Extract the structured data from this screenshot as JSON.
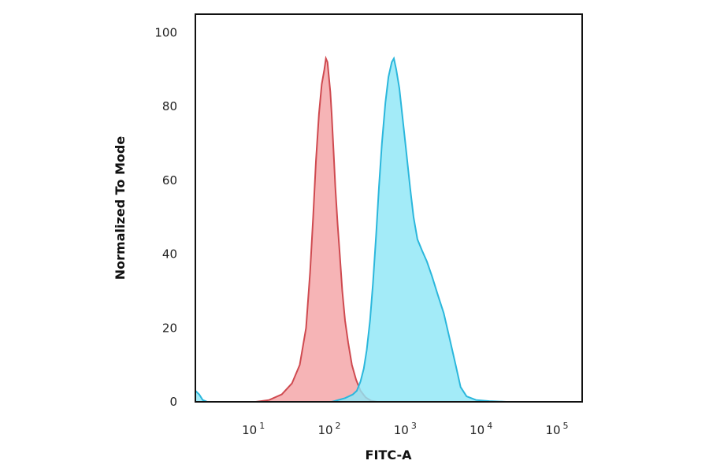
{
  "chart_data": {
    "type": "area",
    "title": "",
    "xlabel": "FITC-A",
    "ylabel": "Normalized To Mode",
    "x_scale": "log",
    "xlim": [
      1.6,
      200000
    ],
    "ylim": [
      0,
      105
    ],
    "x_ticks": [
      {
        "value": 10,
        "base": "10",
        "exp": "1"
      },
      {
        "value": 100,
        "base": "10",
        "exp": "2"
      },
      {
        "value": 1000,
        "base": "10",
        "exp": "3"
      },
      {
        "value": 10000,
        "base": "10",
        "exp": "4"
      },
      {
        "value": 100000,
        "base": "10",
        "exp": "5"
      }
    ],
    "y_ticks": [
      0,
      20,
      40,
      60,
      80,
      100
    ],
    "grid": false,
    "series": [
      {
        "color": "#f4a3a6",
        "stroke": "#cf4a50",
        "points": [
          [
            10,
            0
          ],
          [
            15,
            0.5
          ],
          [
            22,
            2
          ],
          [
            30,
            5
          ],
          [
            38,
            10
          ],
          [
            46,
            20
          ],
          [
            52,
            35
          ],
          [
            57,
            50
          ],
          [
            62,
            65
          ],
          [
            68,
            78
          ],
          [
            74,
            86
          ],
          [
            80,
            90
          ],
          [
            84,
            93
          ],
          [
            88,
            92
          ],
          [
            92,
            88
          ],
          [
            96,
            84
          ],
          [
            100,
            78
          ],
          [
            106,
            68
          ],
          [
            112,
            58
          ],
          [
            120,
            48
          ],
          [
            128,
            40
          ],
          [
            138,
            30
          ],
          [
            150,
            22
          ],
          [
            165,
            16
          ],
          [
            185,
            10
          ],
          [
            210,
            6
          ],
          [
            240,
            3
          ],
          [
            280,
            1.2
          ],
          [
            330,
            0.3
          ],
          [
            400,
            0
          ]
        ]
      },
      {
        "color": "#8fe6f7",
        "stroke": "#2bb7dc",
        "points": [
          [
            100,
            0
          ],
          [
            150,
            1
          ],
          [
            190,
            2
          ],
          [
            215,
            3
          ],
          [
            240,
            5.5
          ],
          [
            265,
            9
          ],
          [
            290,
            14
          ],
          [
            320,
            22
          ],
          [
            350,
            32
          ],
          [
            385,
            45
          ],
          [
            420,
            58
          ],
          [
            460,
            70
          ],
          [
            510,
            81
          ],
          [
            560,
            88
          ],
          [
            620,
            92
          ],
          [
            660,
            93
          ],
          [
            710,
            90
          ],
          [
            780,
            85
          ],
          [
            860,
            77
          ],
          [
            960,
            68
          ],
          [
            1080,
            58
          ],
          [
            1200,
            50
          ],
          [
            1350,
            44
          ],
          [
            1550,
            41
          ],
          [
            1800,
            38
          ],
          [
            2100,
            34
          ],
          [
            2500,
            29
          ],
          [
            3000,
            24
          ],
          [
            3600,
            17
          ],
          [
            4300,
            10
          ],
          [
            5000,
            4
          ],
          [
            6000,
            1.5
          ],
          [
            8000,
            0.5
          ],
          [
            12000,
            0.2
          ],
          [
            20000,
            0
          ]
        ]
      },
      {
        "color": "#8fe6f7",
        "stroke": "#2bb7dc",
        "points": [
          [
            1.6,
            3
          ],
          [
            1.8,
            2
          ],
          [
            2.0,
            0.5
          ],
          [
            2.3,
            0
          ]
        ]
      }
    ]
  }
}
